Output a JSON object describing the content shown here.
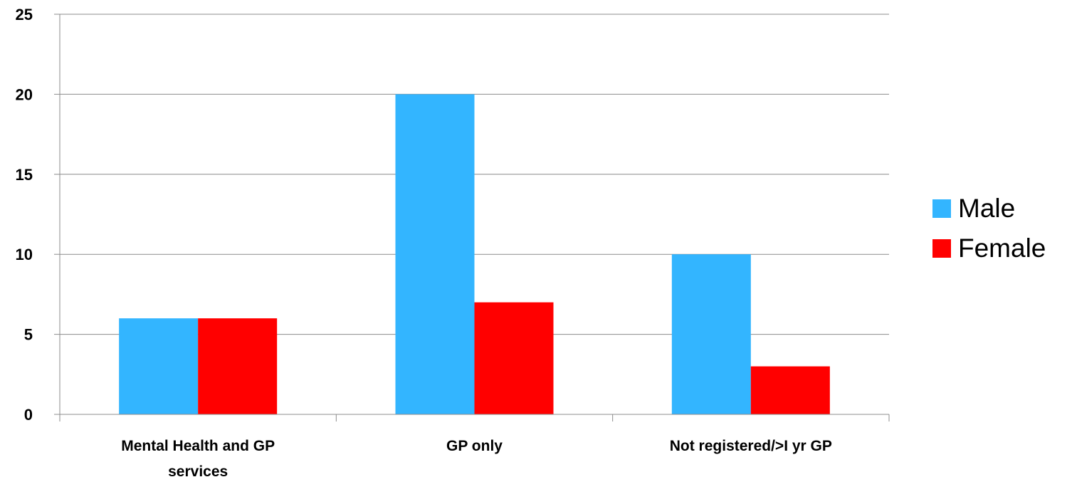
{
  "chart_data": {
    "type": "bar",
    "title": "",
    "xlabel": "",
    "ylabel": "",
    "categories": [
      [
        "Mental Health and GP",
        "services"
      ],
      [
        "GP only"
      ],
      [
        "Not registered/>I yr GP"
      ]
    ],
    "series": [
      {
        "name": "Male",
        "color": "#33b5ff",
        "values": [
          6,
          20,
          10
        ]
      },
      {
        "name": "Female",
        "color": "#ff0000",
        "values": [
          6,
          7,
          3
        ]
      }
    ],
    "ylim": [
      0,
      25
    ],
    "yticks": [
      0,
      5,
      10,
      15,
      20,
      25
    ],
    "grid": true,
    "legend": {
      "position": "right"
    }
  }
}
